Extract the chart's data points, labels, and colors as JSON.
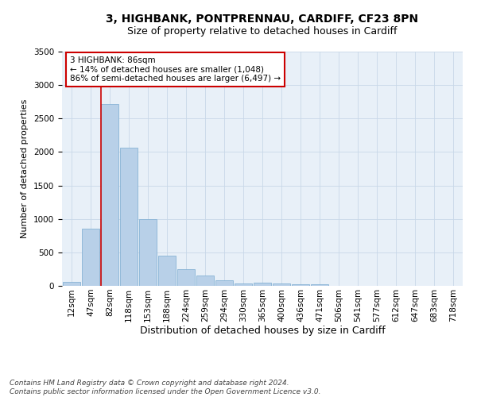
{
  "title": "3, HIGHBANK, PONTPRENNAU, CARDIFF, CF23 8PN",
  "subtitle": "Size of property relative to detached houses in Cardiff",
  "xlabel": "Distribution of detached houses by size in Cardiff",
  "ylabel": "Number of detached properties",
  "categories": [
    "12sqm",
    "47sqm",
    "82sqm",
    "118sqm",
    "153sqm",
    "188sqm",
    "224sqm",
    "259sqm",
    "294sqm",
    "330sqm",
    "365sqm",
    "400sqm",
    "436sqm",
    "471sqm",
    "506sqm",
    "541sqm",
    "577sqm",
    "612sqm",
    "647sqm",
    "683sqm",
    "718sqm"
  ],
  "values": [
    65,
    850,
    2720,
    2060,
    1000,
    450,
    250,
    155,
    80,
    40,
    50,
    30,
    20,
    25,
    5,
    3,
    2,
    1,
    1,
    1,
    1
  ],
  "bar_color": "#b8d0e8",
  "bar_edge_color": "#7aaad0",
  "annotation_text": "3 HIGHBANK: 86sqm\n← 14% of detached houses are smaller (1,048)\n86% of semi-detached houses are larger (6,497) →",
  "annotation_box_color": "#ffffff",
  "annotation_box_edge": "#cc0000",
  "vline_color": "#cc0000",
  "grid_color": "#c8d8e8",
  "background_color": "#e8f0f8",
  "footer_text": "Contains HM Land Registry data © Crown copyright and database right 2024.\nContains public sector information licensed under the Open Government Licence v3.0.",
  "ylim": [
    0,
    3500
  ],
  "title_fontsize": 10,
  "subtitle_fontsize": 9,
  "xlabel_fontsize": 9,
  "ylabel_fontsize": 8,
  "tick_fontsize": 7.5,
  "footer_fontsize": 6.5,
  "annotation_fontsize": 7.5
}
